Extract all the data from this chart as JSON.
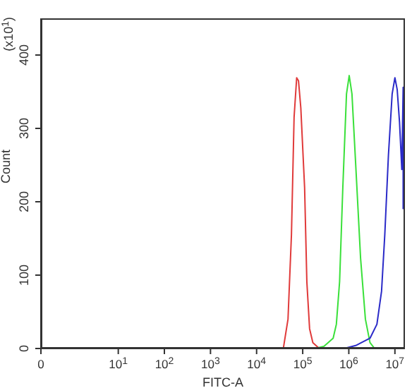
{
  "chart_data": {
    "type": "line",
    "xlabel": "FITC-A",
    "ylabel": "Count",
    "annotations": [
      "(x10$^{1}$)"
    ],
    "log": "x",
    "xlim": [
      0.21,
      16500000
    ],
    "xticks": [
      {
        "value": 0.21,
        "label": "0"
      },
      {
        "value": 10,
        "label": "10$^{1}$"
      },
      {
        "value": 100,
        "label": "10$^{2}$"
      },
      {
        "value": 1000,
        "label": "10$^{3}$"
      },
      {
        "value": 10000,
        "label": "10$^{4}$"
      },
      {
        "value": 100000,
        "label": "10$^{5}$"
      },
      {
        "value": 1000000,
        "label": "10$^{6}$"
      },
      {
        "value": 10000000,
        "label": "10$^{7}$"
      }
    ],
    "ylim": [
      0,
      450
    ],
    "yticks": [
      0,
      100,
      200,
      300,
      400
    ],
    "series": [
      {
        "color": "#e03a3a",
        "x": [
          38000,
          48000,
          57000,
          65000,
          74000,
          81000,
          91000,
          110000,
          123000,
          141000,
          166000,
          229000
        ],
        "values": [
          0,
          40,
          155,
          315,
          369,
          365,
          328,
          219,
          91,
          27,
          8,
          0
        ]
      },
      {
        "color": "#3ae03a",
        "x": [
          184000,
          288000,
          457000,
          537000,
          631000,
          741000,
          891000,
          1020000,
          1170000,
          1410000,
          1800000,
          2290000,
          2880000,
          3630000
        ],
        "values": [
          0,
          3,
          14,
          33,
          91,
          219,
          347,
          372,
          347,
          251,
          123,
          40,
          8,
          0
        ]
      },
      {
        "color": "#2a2ac8",
        "x": [
          794000,
          1410000,
          2880000,
          4070000,
          5130000,
          6030000,
          7240000,
          8710000,
          10000000,
          11200000,
          12600000,
          14100000,
          15100000,
          15100000
        ],
        "values": [
          0,
          4,
          14,
          33,
          78,
          155,
          264,
          347,
          369,
          353,
          308,
          244,
          356,
          190
        ]
      }
    ]
  }
}
